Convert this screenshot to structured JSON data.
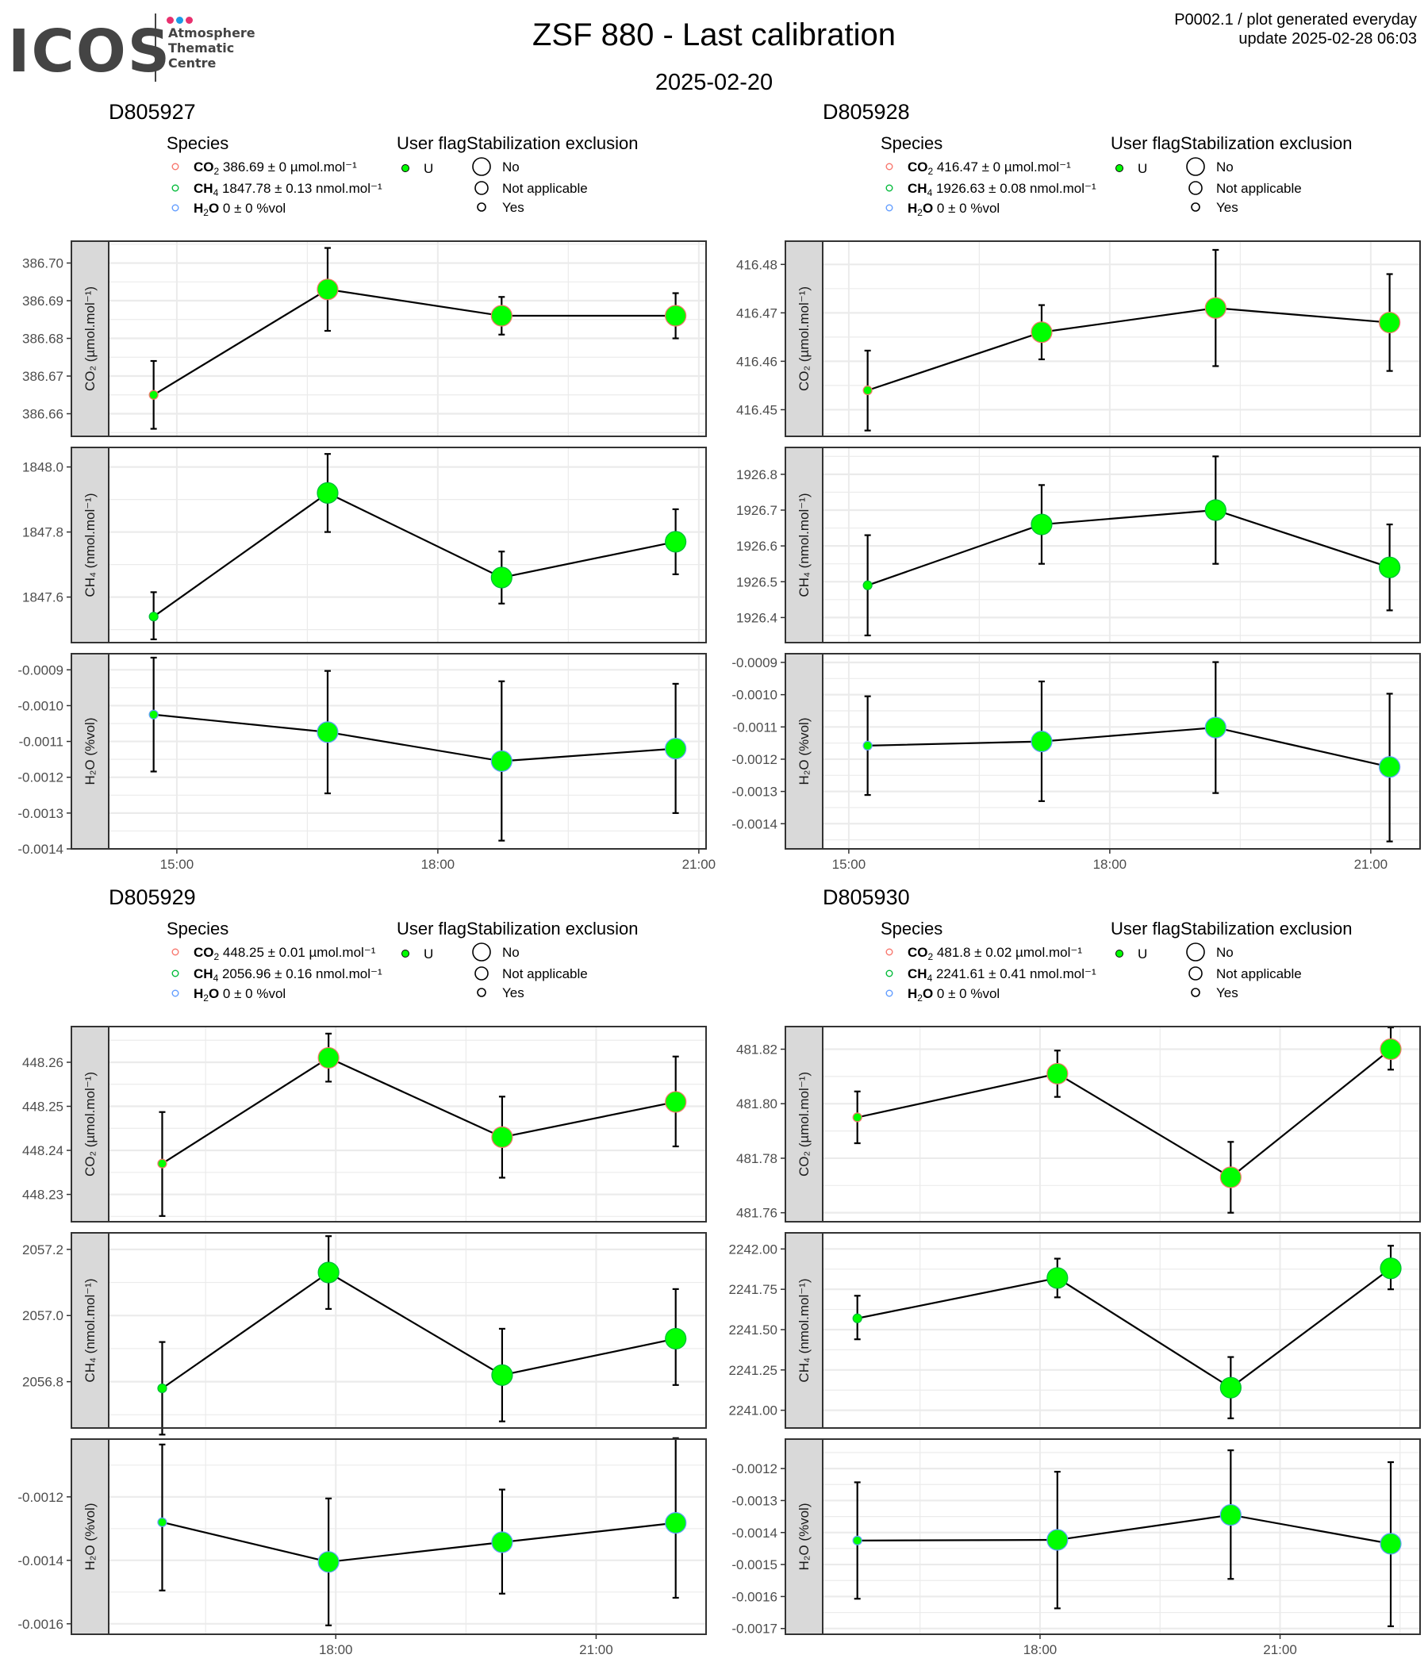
{
  "header": {
    "logo": {
      "name": "ICOS",
      "lines": [
        "Atmosphere",
        "Thematic",
        "Centre"
      ],
      "dot_colors": [
        "#e8306e",
        "#1a9be6",
        "#e8306e"
      ]
    },
    "title": "ZSF 880 - Last calibration",
    "subtitle": "2025-02-20",
    "meta_line1": "P0002.1 / plot generated everyday",
    "meta_line2": "update  2025-02-28 06:03"
  },
  "legend_labels": {
    "species_title": "Species",
    "user_flag_title": "User flag",
    "stab_title": "Stabilization exclusion",
    "user_flag_items": [
      "U"
    ],
    "stab_items": [
      "No",
      "Not applicable",
      "Yes"
    ]
  },
  "colors": {
    "co2": "#f8766d",
    "ch4": "#00ba38",
    "h2o": "#619cff",
    "point_fill": "#00ff00",
    "strip_bg": "#d9d9d9",
    "grid": "#ebebeb"
  },
  "chart_data": [
    {
      "type": "line",
      "title": "D805927",
      "legend": {
        "co2": "386.69 ± 0 µmol.mol⁻¹",
        "ch4": "1847.78 ± 0.13 nmol.mol⁻¹",
        "h2o": "0 ± 0 %vol"
      },
      "x": [
        "14:44",
        "16:44",
        "18:44",
        "20:44"
      ],
      "xticks": [
        "15:00",
        "18:00",
        "21:00"
      ],
      "xlim": [
        "14:13",
        "21:05"
      ],
      "facets": [
        {
          "species": "CO2",
          "ylabel": "CO₂ (µmol.mol⁻¹)",
          "ylim": [
            386.654,
            386.7058
          ],
          "yticks": [
            "386.66",
            "386.67",
            "386.68",
            "386.69",
            "386.70"
          ],
          "values": [
            386.665,
            386.693,
            386.686,
            386.686
          ],
          "upper": [
            386.674,
            386.704,
            386.691,
            386.692
          ],
          "lower": [
            386.656,
            386.682,
            386.681,
            386.68
          ]
        },
        {
          "species": "CH4",
          "ylabel": "CH₄ (nmol.mol⁻¹)",
          "ylim": [
            1847.46,
            1848.06
          ],
          "yticks": [
            "1847.6",
            "1847.8",
            "1848.0"
          ],
          "values": [
            1847.54,
            1847.92,
            1847.66,
            1847.77
          ],
          "upper": [
            1847.615,
            1848.04,
            1847.74,
            1847.87
          ],
          "lower": [
            1847.47,
            1847.8,
            1847.58,
            1847.67
          ]
        },
        {
          "species": "H2O",
          "ylabel": "H₂O (%vol)",
          "ylim": [
            -0.0014,
            -0.000855
          ],
          "yticks": [
            "-0.0014",
            "-0.0013",
            "-0.0012",
            "-0.0011",
            "-0.0010",
            "-0.0009"
          ],
          "values": [
            -0.001025,
            -0.001074,
            -0.001155,
            -0.00112
          ],
          "upper": [
            -0.000866,
            -0.000903,
            -0.000932,
            -0.000939
          ],
          "lower": [
            -0.001184,
            -0.001245,
            -0.001377,
            -0.0013
          ]
        }
      ],
      "point_sizes": [
        "Yes",
        "No",
        "No",
        "No"
      ]
    },
    {
      "type": "line",
      "title": "D805928",
      "legend": {
        "co2": "416.47 ± 0 µmol.mol⁻¹",
        "ch4": "1926.63 ± 0.08 nmol.mol⁻¹",
        "h2o": "0 ± 0 %vol"
      },
      "x": [
        "15:13",
        "17:13",
        "19:13",
        "21:13"
      ],
      "xticks": [
        "15:00",
        "18:00",
        "21:00"
      ],
      "xlim": [
        "14:42",
        "21:34"
      ],
      "facets": [
        {
          "species": "CO2",
          "ylabel": "CO₂ (µmol.mol⁻¹)",
          "ylim": [
            416.4445,
            416.4848
          ],
          "yticks": [
            "416.45",
            "416.46",
            "416.47",
            "416.48"
          ],
          "values": [
            416.454,
            416.466,
            416.471,
            416.468
          ],
          "upper": [
            416.4622,
            416.4716,
            416.483,
            416.478
          ],
          "lower": [
            416.4457,
            416.4604,
            416.459,
            416.458
          ]
        },
        {
          "species": "CH4",
          "ylabel": "CH₄ (nmol.mol⁻¹)",
          "ylim": [
            1926.33,
            1926.875
          ],
          "yticks": [
            "1926.4",
            "1926.5",
            "1926.6",
            "1926.7",
            "1926.8"
          ],
          "values": [
            1926.49,
            1926.66,
            1926.7,
            1926.54
          ],
          "upper": [
            1926.63,
            1926.77,
            1926.85,
            1926.66
          ],
          "lower": [
            1926.35,
            1926.55,
            1926.55,
            1926.42
          ]
        },
        {
          "species": "H2O",
          "ylabel": "H₂O (%vol)",
          "ylim": [
            -0.001478,
            -0.000873
          ],
          "yticks": [
            "-0.0014",
            "-0.0013",
            "-0.0012",
            "-0.0011",
            "-0.0010",
            "-0.0009"
          ],
          "values": [
            -0.001158,
            -0.001145,
            -0.001102,
            -0.001224
          ],
          "upper": [
            -0.001005,
            -0.000959,
            -0.000899,
            -0.000997
          ],
          "lower": [
            -0.001311,
            -0.00133,
            -0.001305,
            -0.001455
          ]
        }
      ],
      "point_sizes": [
        "Yes",
        "No",
        "No",
        "No"
      ]
    },
    {
      "type": "line",
      "title": "D805929",
      "legend": {
        "co2": "448.25 ± 0.01 µmol.mol⁻¹",
        "ch4": "2056.96 ± 0.16 nmol.mol⁻¹",
        "h2o": "0 ± 0 %vol"
      },
      "x": [
        "16:00",
        "17:55",
        "19:55",
        "21:55"
      ],
      "xticks": [
        "18:00",
        "21:00"
      ],
      "xlim": [
        "15:23",
        "22:16"
      ],
      "facets": [
        {
          "species": "CO2",
          "ylabel": "CO₂ (µmol.mol⁻¹)",
          "ylim": [
            448.2238,
            448.2681
          ],
          "yticks": [
            "448.23",
            "448.24",
            "448.25",
            "448.26"
          ],
          "values": [
            448.237,
            448.261,
            448.243,
            448.251
          ],
          "upper": [
            448.2487,
            448.2665,
            448.2522,
            448.2613
          ],
          "lower": [
            448.2251,
            448.2556,
            448.2338,
            448.2409
          ]
        },
        {
          "species": "CH4",
          "ylabel": "CH₄ (nmol.mol⁻¹)",
          "ylim": [
            2056.66,
            2057.25
          ],
          "yticks": [
            "2056.8",
            "2057.0",
            "2057.2"
          ],
          "values": [
            2056.78,
            2057.13,
            2056.82,
            2056.93
          ],
          "upper": [
            2056.92,
            2057.24,
            2056.96,
            2057.08
          ],
          "lower": [
            2056.64,
            2057.02,
            2056.68,
            2056.79
          ]
        },
        {
          "species": "H2O",
          "ylabel": "H₂O (%vol)",
          "ylim": [
            -0.001633,
            -0.001018
          ],
          "yticks": [
            "-0.0016",
            "-0.0014",
            "-0.0012"
          ],
          "values": [
            -0.00128,
            -0.001405,
            -0.001343,
            -0.001282
          ],
          "upper": [
            -0.001035,
            -0.001205,
            -0.001177,
            -0.001015
          ],
          "lower": [
            -0.001495,
            -0.001605,
            -0.001505,
            -0.001518
          ]
        }
      ],
      "point_sizes": [
        "Yes",
        "No",
        "No",
        "No"
      ]
    },
    {
      "type": "line",
      "title": "D805930",
      "legend": {
        "co2": "481.8 ± 0.02 µmol.mol⁻¹",
        "ch4": "2241.61 ± 0.41 nmol.mol⁻¹",
        "h2o": "0 ± 0 %vol"
      },
      "x": [
        "15:43",
        "18:13",
        "20:23",
        "22:23"
      ],
      "xticks": [
        "18:00",
        "21:00"
      ],
      "xlim": [
        "15:17",
        "22:45"
      ],
      "facets": [
        {
          "species": "CO2",
          "ylabel": "CO₂ (µmol.mol⁻¹)",
          "ylim": [
            481.7567,
            481.8283
          ],
          "yticks": [
            "481.76",
            "481.78",
            "481.80",
            "481.82"
          ],
          "values": [
            481.795,
            481.811,
            481.773,
            481.82
          ],
          "upper": [
            481.8045,
            481.8195,
            481.786,
            481.828
          ],
          "lower": [
            481.7855,
            481.8025,
            481.76,
            481.8125
          ]
        },
        {
          "species": "CH4",
          "ylabel": "CH₄ (nmol.mol⁻¹)",
          "ylim": [
            2240.89,
            2242.1
          ],
          "yticks": [
            "2241.00",
            "2241.25",
            "2241.50",
            "2241.75",
            "2242.00"
          ],
          "values": [
            2241.57,
            2241.82,
            2241.14,
            2241.88
          ],
          "upper": [
            2241.71,
            2241.94,
            2241.33,
            2242.02
          ],
          "lower": [
            2241.44,
            2241.7,
            2240.95,
            2241.75
          ]
        },
        {
          "species": "H2O",
          "ylabel": "H₂O (%vol)",
          "ylim": [
            -0.001718,
            -0.001108
          ],
          "yticks": [
            "-0.0017",
            "-0.0016",
            "-0.0015",
            "-0.0014",
            "-0.0013",
            "-0.0012"
          ],
          "values": [
            -0.001425,
            -0.001423,
            -0.001345,
            -0.001435
          ],
          "upper": [
            -0.001243,
            -0.00121,
            -0.001143,
            -0.00118
          ],
          "lower": [
            -0.001607,
            -0.001637,
            -0.001545,
            -0.001693
          ]
        }
      ],
      "point_sizes": [
        "Yes",
        "No",
        "No",
        "No"
      ]
    }
  ]
}
